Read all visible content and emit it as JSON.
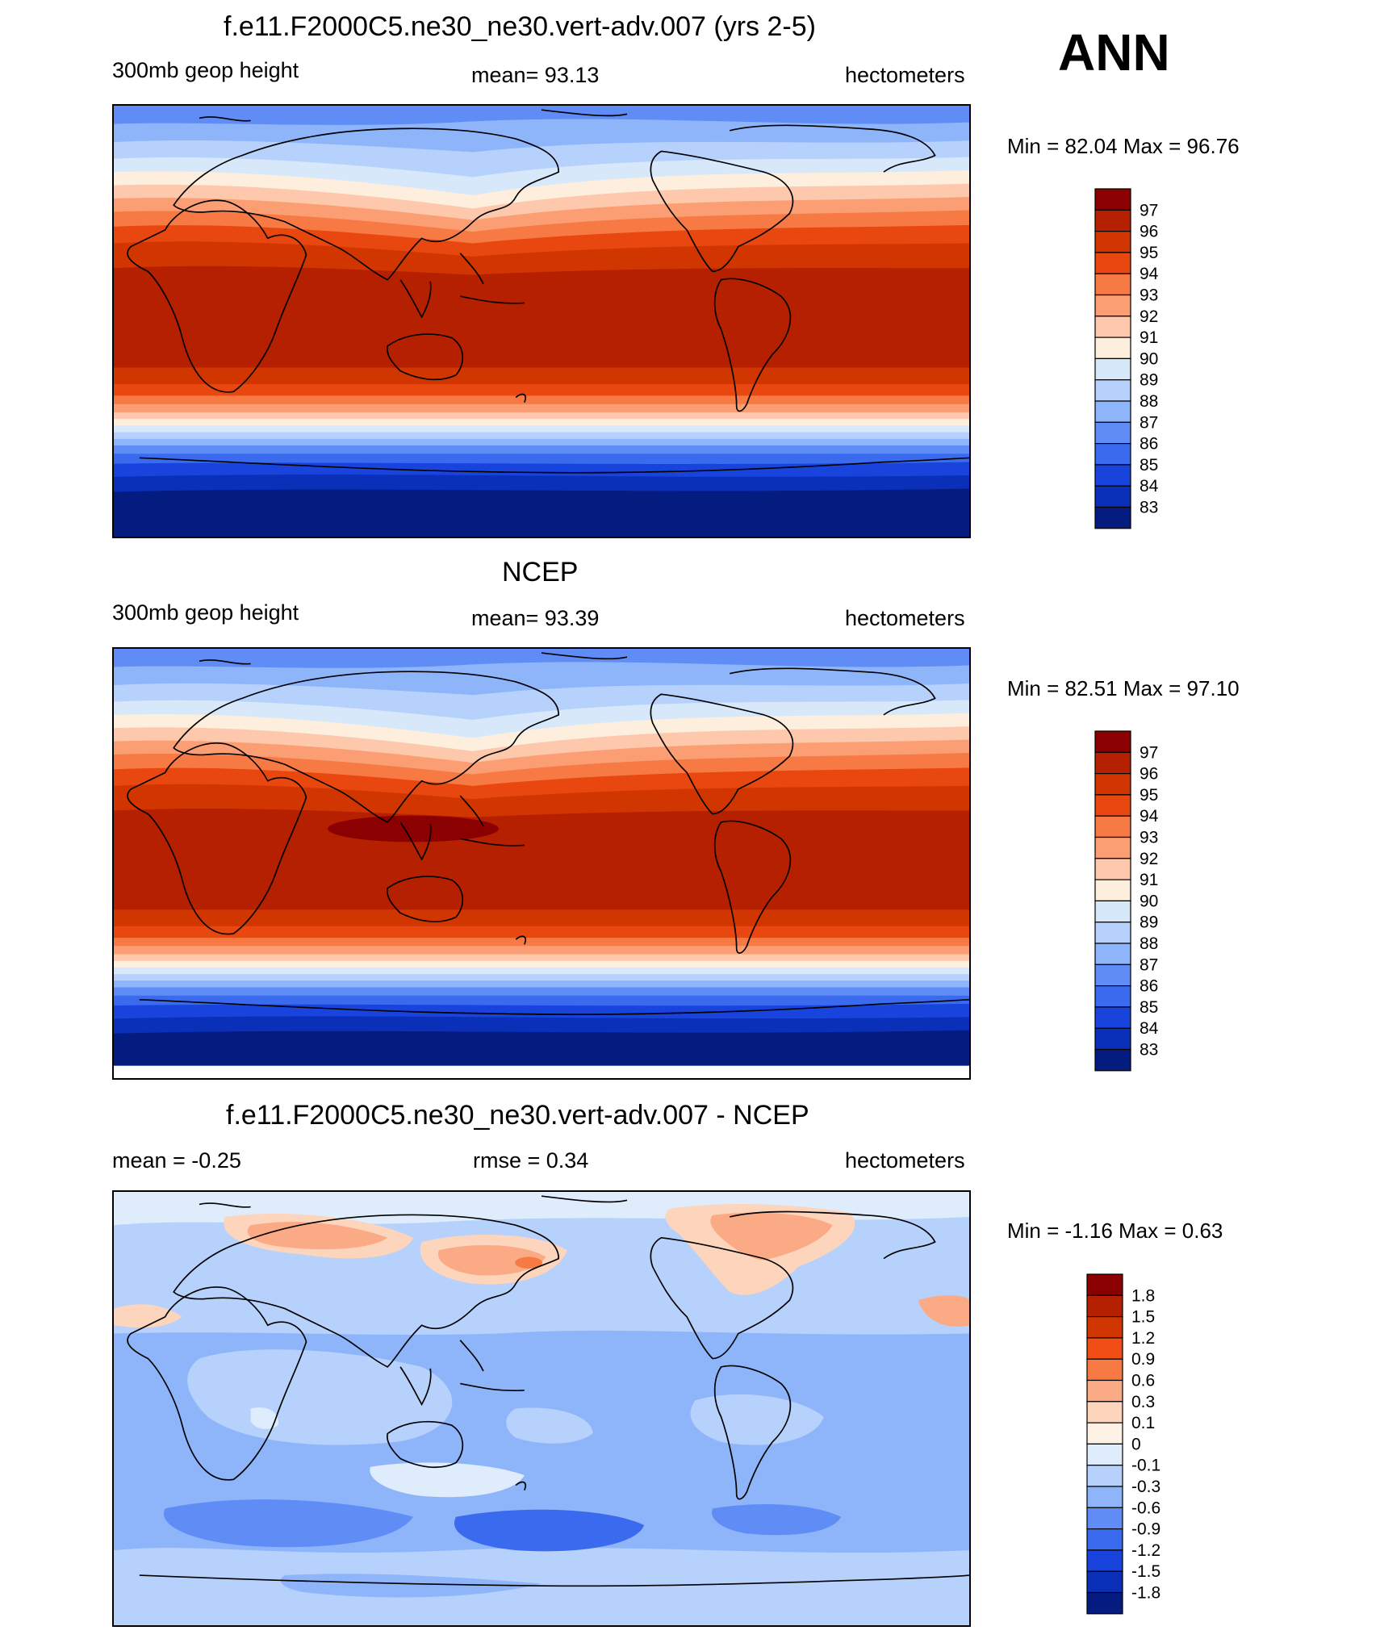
{
  "header": {
    "season": "ANN"
  },
  "panels": [
    {
      "id": "model",
      "title": "f.e11.F2000C5.ne30_ne30.vert-adv.007 (yrs 2-5)",
      "left_label": "300mb geop height",
      "center_label": "mean=  93.13",
      "right_label": "hectometers",
      "minmax": "Min =  82.04 Max =  96.76",
      "colorbar_labels": [
        "97",
        "96",
        "95",
        "94",
        "93",
        "92",
        "91",
        "90",
        "89",
        "88",
        "87",
        "86",
        "85",
        "84",
        "83"
      ],
      "colors": [
        "#8b0000",
        "#b52000",
        "#d23600",
        "#e8470f",
        "#f77a44",
        "#fb9e74",
        "#fdc8ac",
        "#fdeedd",
        "#d8e8fb",
        "#b6d1fb",
        "#8eb4fa",
        "#5f8df5",
        "#3a6bee",
        "#1843dd",
        "#0a2fb8",
        "#041b80"
      ]
    },
    {
      "id": "obs",
      "title": "NCEP",
      "left_label": "300mb geop height",
      "center_label": "mean=  93.39",
      "right_label": "hectometers",
      "minmax": "Min =  82.51 Max =  97.10",
      "colorbar_labels": [
        "97",
        "96",
        "95",
        "94",
        "93",
        "92",
        "91",
        "90",
        "89",
        "88",
        "87",
        "86",
        "85",
        "84",
        "83"
      ],
      "colors": [
        "#8b0000",
        "#b52000",
        "#d23600",
        "#e8470f",
        "#f77a44",
        "#fb9e74",
        "#fdc8ac",
        "#fdeedd",
        "#d8e8fb",
        "#b6d1fb",
        "#8eb4fa",
        "#5f8df5",
        "#3a6bee",
        "#1843dd",
        "#0a2fb8",
        "#041b80"
      ]
    },
    {
      "id": "diff",
      "title": "f.e11.F2000C5.ne30_ne30.vert-adv.007 - NCEP",
      "left_label": "mean =  -0.25",
      "center_label": "rmse =   0.34",
      "right_label": "hectometers",
      "minmax": "Min =  -1.16 Max =   0.63",
      "colorbar_labels": [
        "1.8",
        "1.5",
        "1.2",
        "0.9",
        "0.6",
        "0.3",
        "0.1",
        "0",
        "-0.1",
        "-0.3",
        "-0.6",
        "-0.9",
        "-1.2",
        "-1.5",
        "-1.8"
      ],
      "colors": [
        "#8b0000",
        "#b52000",
        "#d23600",
        "#f04e15",
        "#f77a44",
        "#fbaa86",
        "#fdd4bc",
        "#fdf0e4",
        "#deecfc",
        "#b6d1fb",
        "#8eb4fa",
        "#5f8df5",
        "#3a6bee",
        "#1843dd",
        "#0a2fb8",
        "#041b80"
      ]
    }
  ]
}
